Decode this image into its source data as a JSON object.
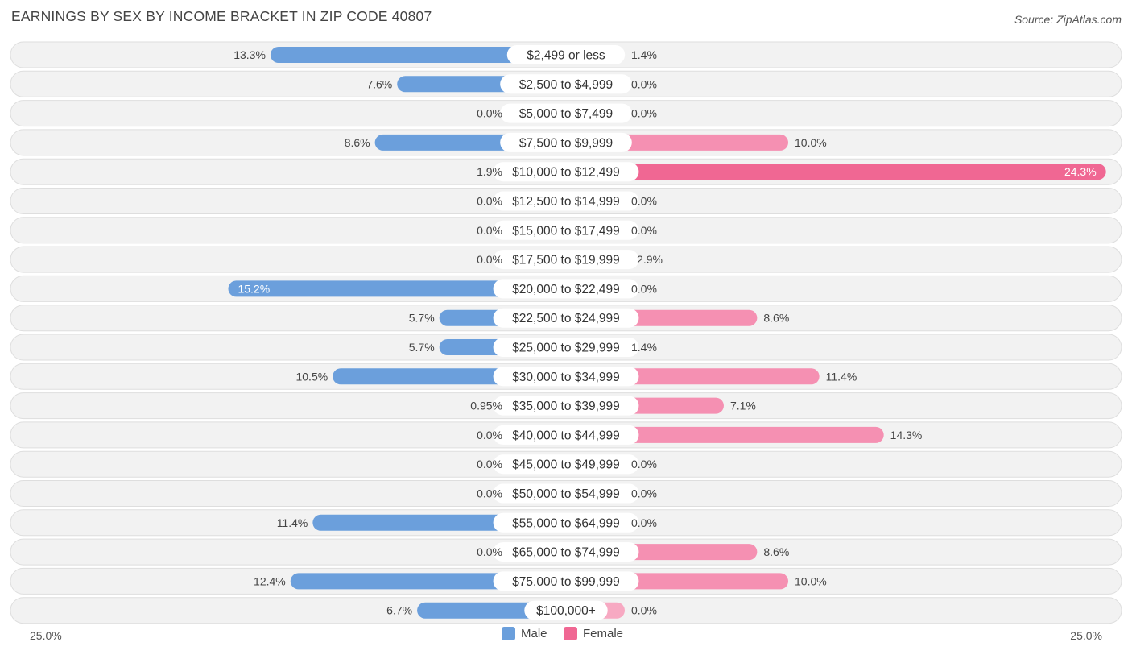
{
  "header": {
    "title": "EARNINGS BY SEX BY INCOME BRACKET IN ZIP CODE 40807",
    "source": "Source: ZipAtlas.com"
  },
  "colors": {
    "male": "#6b9fdc",
    "male_light": "#a9c7ea",
    "female": "#f06793",
    "female_light": "#f7a9c2",
    "row_bg": "#f2f2f2",
    "row_border": "#dedede"
  },
  "legend": {
    "male_label": "Male",
    "female_label": "Female"
  },
  "axis": {
    "left_label": "25.0%",
    "right_label": "25.0%"
  },
  "chart_data": {
    "type": "bar",
    "orientation": "horizontal-diverging",
    "title": "EARNINGS BY SEX BY INCOME BRACKET IN ZIP CODE 40807",
    "categories": [
      "$2,499 or less",
      "$2,500 to $4,999",
      "$5,000 to $7,499",
      "$7,500 to $9,999",
      "$10,000 to $12,499",
      "$12,500 to $14,999",
      "$15,000 to $17,499",
      "$17,500 to $19,999",
      "$20,000 to $22,499",
      "$22,500 to $24,999",
      "$25,000 to $29,999",
      "$30,000 to $34,999",
      "$35,000 to $39,999",
      "$40,000 to $44,999",
      "$45,000 to $49,999",
      "$50,000 to $54,999",
      "$55,000 to $64,999",
      "$65,000 to $74,999",
      "$75,000 to $99,999",
      "$100,000+"
    ],
    "series": [
      {
        "name": "Male",
        "values": [
          13.3,
          7.6,
          0.0,
          8.6,
          1.9,
          0.0,
          0.0,
          0.0,
          15.2,
          5.7,
          5.7,
          10.5,
          0.95,
          0.0,
          0.0,
          0.0,
          11.4,
          0.0,
          12.4,
          6.7
        ],
        "labels": [
          "13.3%",
          "7.6%",
          "0.0%",
          "8.6%",
          "1.9%",
          "0.0%",
          "0.0%",
          "0.0%",
          "15.2%",
          "5.7%",
          "5.7%",
          "10.5%",
          "0.95%",
          "0.0%",
          "0.0%",
          "0.0%",
          "11.4%",
          "0.0%",
          "12.4%",
          "6.7%"
        ]
      },
      {
        "name": "Female",
        "values": [
          1.4,
          0.0,
          0.0,
          10.0,
          24.3,
          0.0,
          0.0,
          2.9,
          0.0,
          8.6,
          1.4,
          11.4,
          7.1,
          14.3,
          0.0,
          0.0,
          0.0,
          8.6,
          10.0,
          0.0
        ],
        "labels": [
          "1.4%",
          "0.0%",
          "0.0%",
          "10.0%",
          "24.3%",
          "0.0%",
          "0.0%",
          "2.9%",
          "0.0%",
          "8.6%",
          "1.4%",
          "11.4%",
          "7.1%",
          "14.3%",
          "0.0%",
          "0.0%",
          "0.0%",
          "8.6%",
          "10.0%",
          "0.0%"
        ]
      }
    ],
    "xlim": [
      -25,
      25
    ],
    "xlabel_left": "25.0%",
    "xlabel_right": "25.0%",
    "legend": [
      "Male",
      "Female"
    ],
    "legend_position": "bottom-center"
  }
}
